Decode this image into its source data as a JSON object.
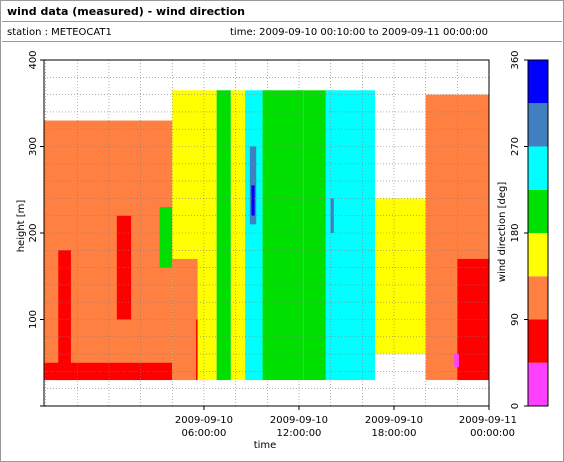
{
  "header": {
    "title": "wind data (measured) - wind direction",
    "station": "station : METEOCAT1",
    "time_range": "time: 2009-09-10 00:10:00 to 2009-09-11 00:00:00"
  },
  "chart_data": {
    "type": "heatmap",
    "title": "wind data (measured) - wind direction",
    "xlabel": "time",
    "ylabel": "height [m]",
    "colorbar_label": "wind direction [deg]",
    "x_range_hours": [
      -4.1,
      24.0
    ],
    "ylim": [
      0,
      400
    ],
    "y_ticks": [
      100,
      200,
      300,
      400
    ],
    "x_ticks": [
      {
        "hours": 6,
        "line1": "2009-09-10",
        "line2": "06:00:00"
      },
      {
        "hours": 12,
        "line1": "2009-09-10",
        "line2": "12:00:00"
      },
      {
        "hours": 18,
        "line1": "2009-09-10",
        "line2": "18:00:00"
      },
      {
        "hours": 24,
        "line1": "2009-09-11",
        "line2": "00:00:00"
      }
    ],
    "grid": true,
    "colorbar": {
      "range": [
        0,
        360
      ],
      "ticks": [
        0,
        90,
        180,
        270,
        360
      ],
      "bins": [
        {
          "from": 0,
          "to": 45,
          "color": "#ff40ff"
        },
        {
          "from": 45,
          "to": 90,
          "color": "#ff0000"
        },
        {
          "from": 90,
          "to": 135,
          "color": "#ff8040"
        },
        {
          "from": 135,
          "to": 180,
          "color": "#ffff00"
        },
        {
          "from": 180,
          "to": 225,
          "color": "#00e000"
        },
        {
          "from": 225,
          "to": 270,
          "color": "#00ffff"
        },
        {
          "from": 270,
          "to": 315,
          "color": "#4080c0"
        },
        {
          "from": 315,
          "to": 360,
          "color": "#0000ff"
        }
      ]
    },
    "segments": [
      {
        "t0": -4.1,
        "t1": 4.0,
        "h0": 30,
        "h1": 330,
        "dir": 112
      },
      {
        "t0": -4.1,
        "t1": 4.0,
        "h0": 30,
        "h1": 50,
        "dir": 60
      },
      {
        "t0": -3.2,
        "t1": -2.4,
        "h0": 30,
        "h1": 180,
        "dir": 70
      },
      {
        "t0": 0.5,
        "t1": 1.4,
        "h0": 100,
        "h1": 220,
        "dir": 65
      },
      {
        "t0": 3.2,
        "t1": 4.0,
        "h0": 160,
        "h1": 230,
        "dir": 195
      },
      {
        "t0": 4.0,
        "t1": 5.6,
        "h0": 30,
        "h1": 365,
        "dir": 160
      },
      {
        "t0": 4.0,
        "t1": 6.5,
        "h0": 30,
        "h1": 170,
        "dir": 112
      },
      {
        "t0": 5.5,
        "t1": 6.2,
        "h0": 30,
        "h1": 100,
        "dir": 70
      },
      {
        "t0": 5.6,
        "t1": 6.8,
        "h0": 30,
        "h1": 365,
        "dir": 160
      },
      {
        "t0": 6.8,
        "t1": 7.7,
        "h0": 30,
        "h1": 365,
        "dir": 198
      },
      {
        "t0": 7.7,
        "t1": 8.6,
        "h0": 30,
        "h1": 365,
        "dir": 160
      },
      {
        "t0": 8.6,
        "t1": 9.7,
        "h0": 30,
        "h1": 365,
        "dir": 238
      },
      {
        "t0": 8.9,
        "t1": 9.3,
        "h0": 210,
        "h1": 300,
        "dir": 290
      },
      {
        "t0": 9.0,
        "t1": 9.2,
        "h0": 220,
        "h1": 255,
        "dir": 340
      },
      {
        "t0": 9.7,
        "t1": 12.3,
        "h0": 30,
        "h1": 365,
        "dir": 200
      },
      {
        "t0": 12.3,
        "t1": 13.7,
        "h0": 30,
        "h1": 365,
        "dir": 190
      },
      {
        "t0": 13.7,
        "t1": 16.8,
        "h0": 30,
        "h1": 365,
        "dir": 250
      },
      {
        "t0": 14.0,
        "t1": 14.2,
        "h0": 200,
        "h1": 240,
        "dir": 290
      },
      {
        "t0": 16.8,
        "t1": 20.0,
        "h0": 60,
        "h1": 240,
        "dir": 160
      },
      {
        "t0": 20.0,
        "t1": 24.0,
        "h0": 30,
        "h1": 360,
        "dir": 112
      },
      {
        "t0": 22.0,
        "t1": 24.0,
        "h0": 30,
        "h1": 170,
        "dir": 70
      },
      {
        "t0": 21.8,
        "t1": 22.1,
        "h0": 45,
        "h1": 60,
        "dir": 20
      }
    ]
  }
}
